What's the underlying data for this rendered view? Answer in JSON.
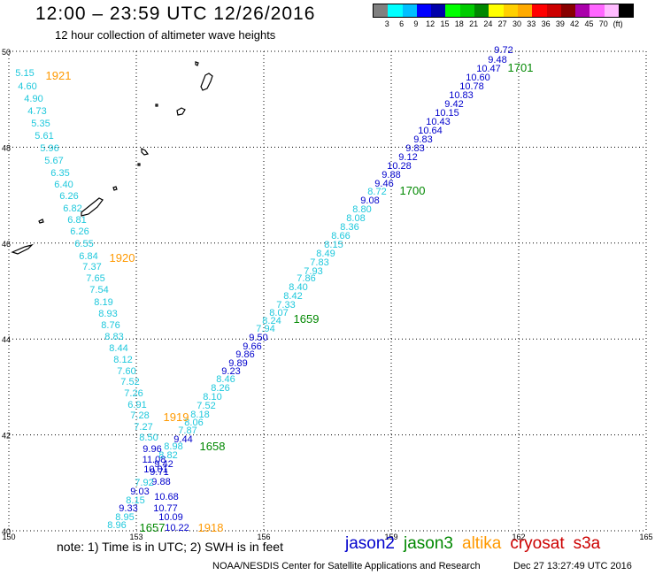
{
  "header": {
    "title": "12:00 – 23:59 UTC 12/26/2016",
    "subtitle": "12 hour collection of altimeter wave heights"
  },
  "colorscale": {
    "unit": "(ft)",
    "colors": [
      "#808080",
      "#00ffff",
      "#00bfff",
      "#0000ff",
      "#0000aa",
      "#00ff00",
      "#00cc00",
      "#008800",
      "#ffff00",
      "#ffd000",
      "#ffaa00",
      "#ff0000",
      "#cc0000",
      "#880000",
      "#aa00aa",
      "#ff66ff",
      "#ffbbff",
      "#000000"
    ],
    "labels": [
      "3",
      "6",
      "9",
      "12",
      "15",
      "18",
      "21",
      "24",
      "27",
      "30",
      "33",
      "36",
      "39",
      "42",
      "45",
      "70",
      "(ft)"
    ]
  },
  "map": {
    "lat_ticks": [
      "50",
      "48",
      "46",
      "44",
      "42",
      "40"
    ],
    "lon_ticks": [
      "150",
      "153",
      "156",
      "159",
      "162",
      "165"
    ],
    "swh_colors": {
      "cyan": "#1ec8dc",
      "blue": "#0000cc"
    },
    "time_colors": {
      "orange": "#ff9900",
      "green": "#008800"
    },
    "track1_labels": [
      "5.15",
      "4.60",
      "4.90",
      "4.73",
      "5.35",
      "5.61",
      "5.96",
      "5.67",
      "6.35",
      "6.40",
      "6.26",
      "6.82",
      "6.81",
      "6.26",
      "6.55",
      "6.84",
      "7.37",
      "7.65",
      "7.54",
      "8.19",
      "8.93",
      "8.76",
      "8.83",
      "8.44",
      "8.12",
      "7.60",
      "7.52",
      "7.26",
      "6.91",
      "7.28",
      "7.27",
      "8.50",
      "9.96",
      "11.08",
      "10.01",
      "9.71",
      "9.88",
      "7.92",
      "9.03",
      "8.15",
      "9.33",
      "8.95",
      "8.96"
    ],
    "track1_times": [
      "1921",
      "1920",
      "1919",
      "1918"
    ],
    "track2_labels": [
      "9.72",
      "9.48",
      "10.47",
      "10.60",
      "10.78",
      "10.83",
      "9.42",
      "10.15",
      "10.43",
      "10.64",
      "9.83",
      "9.83",
      "9.12",
      "10.28",
      "9.88",
      "9.46",
      "8.72",
      "9.08",
      "8.80",
      "8.08",
      "8.36",
      "8.66",
      "8.15",
      "8.49",
      "7.83",
      "7.93",
      "7.86",
      "8.40",
      "8.42",
      "7.33",
      "8.07",
      "8.24",
      "7.94",
      "9.50",
      "9.66",
      "9.86",
      "9.89",
      "9.23",
      "8.46",
      "8.26",
      "8.10",
      "7.52",
      "8.18",
      "8.06",
      "7.87",
      "9.44",
      "8.98",
      "8.82",
      "9.42",
      "10.68",
      "10.77",
      "10.09",
      "10.22"
    ],
    "track2_times": [
      "1701",
      "1700",
      "1659",
      "1658",
      "1657"
    ]
  },
  "footer": {
    "note": "note:  1) Time is in UTC;  2) SWH is in feet",
    "satellites": [
      {
        "name": "jason2",
        "color": "#0000cc"
      },
      {
        "name": "jason3",
        "color": "#008800"
      },
      {
        "name": "altika",
        "color": "#ff9900"
      },
      {
        "name": "cryosat",
        "color": "#cc0000"
      },
      {
        "name": "s3a",
        "color": "#cc0000"
      }
    ],
    "credit": "NOAA/NESDIS Center for Satellite Applications and Research",
    "timestamp": "Dec 27 13:27:49 UTC 2016"
  }
}
